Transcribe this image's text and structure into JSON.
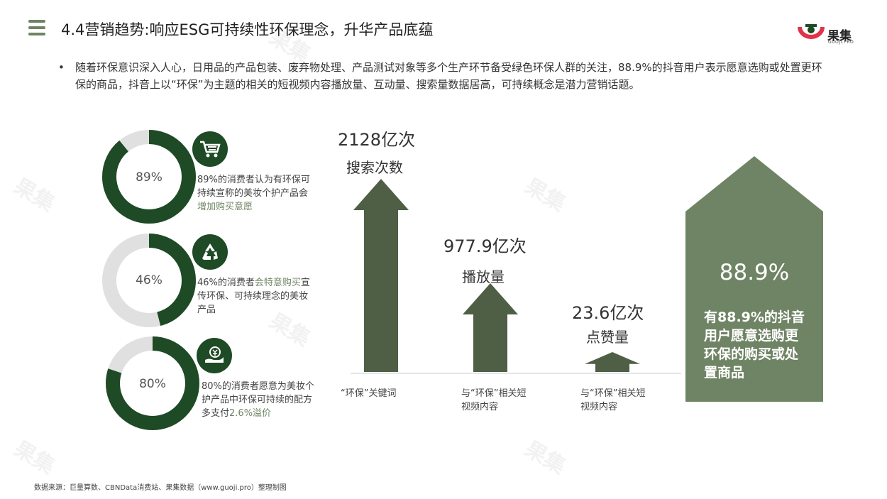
{
  "header": {
    "title": "4.4营销趋势:响应ESG可持续性环保理念，升华产品底蕴",
    "logo_text": "果集",
    "logo_sub": "GUOJI.PRO"
  },
  "intro": {
    "bullet": "•",
    "text": "随着环保意识深入人心，日用品的产品包装、废弃物处理、产品测试对象等多个生产环节备受绿色环保人群的关注，88.9%的抖音用户表示愿意选购或处置更环保的商品，抖音上以“环保”为主题的相关的短视频内容播放量、互动量、搜索量数据居高，可持续概念是潜力营销话题。"
  },
  "stats": [
    {
      "pct_label": "89%",
      "value": 89,
      "icon": "shopping-cart-icon",
      "text_pre": "89%的消费者认为有环保可持续宣称的美妆个护产品会",
      "text_hl": "增加购买意愿",
      "text_post": ""
    },
    {
      "pct_label": "46%",
      "value": 46,
      "icon": "recycle-icon",
      "text_pre": "46%的消费者",
      "text_hl": "会特意购买",
      "text_post": "宣传环保、可持续理念的美妆产品"
    },
    {
      "pct_label": "80%",
      "value": 80,
      "icon": "money-hand-icon",
      "text_pre": "80%的消费者愿意为美妆个护产品中环保可持续的配方多支付",
      "text_hl": "2.6%溢价",
      "text_post": ""
    }
  ],
  "chart_data": {
    "type": "bar",
    "categories": [
      "“环保”关键词",
      "与“环保”相关短视频内容",
      "与“环保”相关短视频内容"
    ],
    "series": [
      {
        "name": "",
        "values": [
          2128,
          977.9,
          23.6
        ]
      }
    ],
    "value_labels": [
      "2128亿次",
      "977.9亿次",
      "23.6亿次"
    ],
    "metric_labels": [
      "搜索次数",
      "播放量",
      "点赞量"
    ],
    "unit": "亿次"
  },
  "highlight": {
    "value_label": "88.9%",
    "value": 88.9,
    "text": "有88.9%的抖音用户愿意选购更环保的购买或处置商品"
  },
  "colors": {
    "dark_green": "#1e4a25",
    "arrow_green": "#4e5f45",
    "house_green": "#6f8464",
    "track_grey": "#e0e0e0",
    "logo_red": "#e0334a"
  },
  "footer": {
    "source": "数据来源：巨量算数、CBNData消费站、果集数据（www.guoji.pro）整理制图"
  }
}
